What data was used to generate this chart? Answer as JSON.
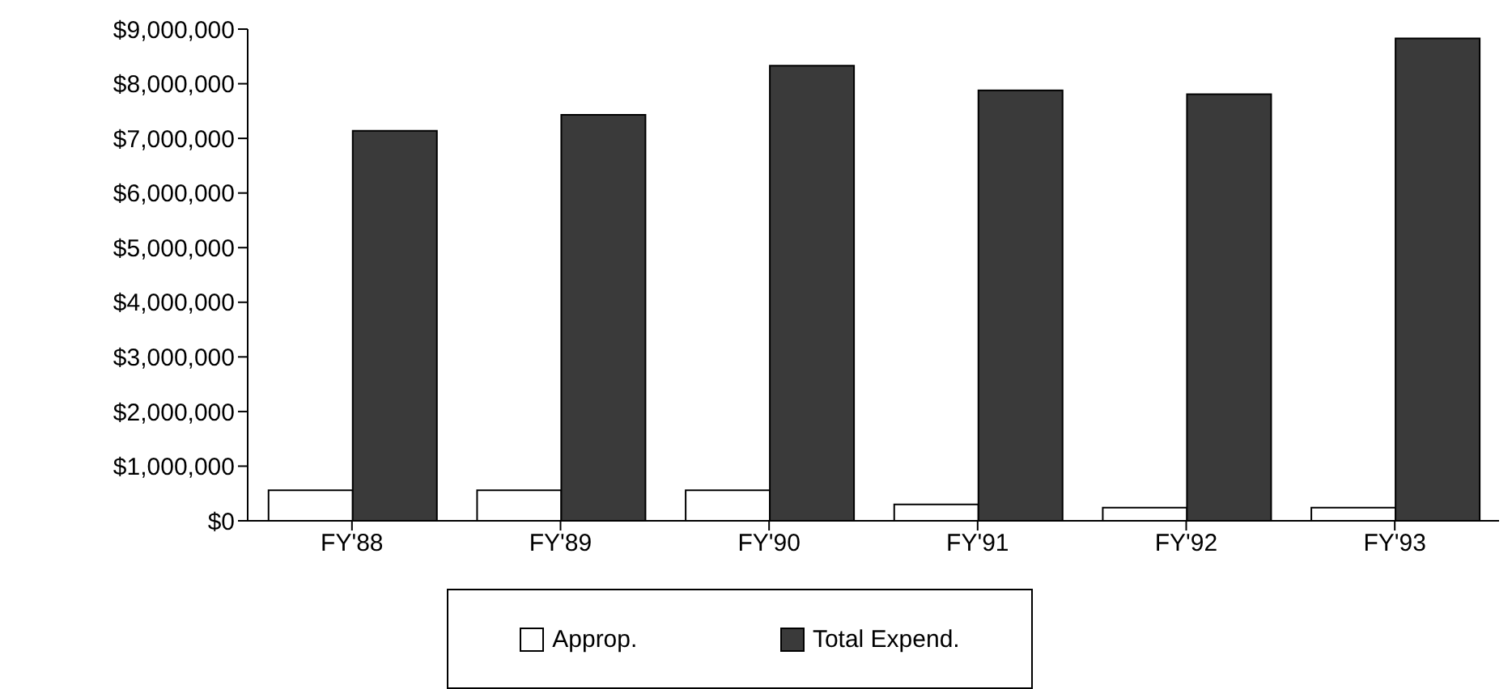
{
  "chart_data": {
    "type": "bar",
    "categories": [
      "FY'88",
      "FY'89",
      "FY'90",
      "FY'91",
      "FY'92",
      "FY'93"
    ],
    "series": [
      {
        "name": "Approp.",
        "color": "#ffffff",
        "values": [
          560000,
          560000,
          560000,
          300000,
          240000,
          240000
        ]
      },
      {
        "name": "Total Expend.",
        "color": "#3a3a3a",
        "values": [
          7140000,
          7430000,
          8330000,
          7880000,
          7810000,
          8830000
        ]
      }
    ],
    "ylim": [
      0,
      9000000
    ],
    "yticks": [
      {
        "value": 0,
        "label": "$0"
      },
      {
        "value": 1000000,
        "label": "$1,000,000"
      },
      {
        "value": 2000000,
        "label": "$2,000,000"
      },
      {
        "value": 3000000,
        "label": "$3,000,000"
      },
      {
        "value": 4000000,
        "label": "$4,000,000"
      },
      {
        "value": 5000000,
        "label": "$5,000,000"
      },
      {
        "value": 6000000,
        "label": "$6,000,000"
      },
      {
        "value": 7000000,
        "label": "$7,000,000"
      },
      {
        "value": 8000000,
        "label": "$8,000,000"
      },
      {
        "value": 9000000,
        "label": "$9,000,000"
      }
    ],
    "grid": false,
    "legend": "bottom"
  }
}
